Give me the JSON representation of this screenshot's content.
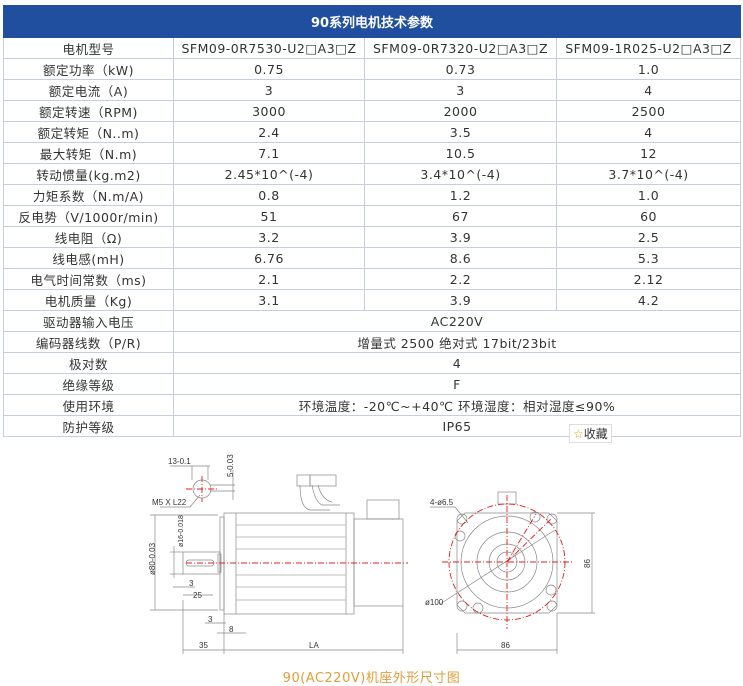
{
  "title": "90系列电机技术参数",
  "models": [
    "SFM09-0R7530-U2□A3□Z",
    "SFM09-0R7320-U2□A3□Z",
    "SFM09-1R025-U2□A3□Z"
  ],
  "model_label": "电机型号",
  "rows": [
    {
      "label": "额定功率（kW)",
      "values": [
        "0.75",
        "0.73",
        "1.0"
      ]
    },
    {
      "label": "额定电流（A)",
      "values": [
        "3",
        "3",
        "4"
      ]
    },
    {
      "label": "额定转速（RPM)",
      "values": [
        "3000",
        "2000",
        "2500"
      ]
    },
    {
      "label": "额定转矩（N..m)",
      "values": [
        "2.4",
        "3.5",
        "4"
      ]
    },
    {
      "label": "最大转矩（N.m)",
      "values": [
        "7.1",
        "10.5",
        "12"
      ]
    },
    {
      "label": "转动惯量(kg.m2)",
      "values": [
        "2.45*10^(-4)",
        "3.4*10^(-4)",
        "3.7*10^(-4)"
      ]
    },
    {
      "label": "力矩系数（N.m/A)",
      "values": [
        "0.8",
        "1.2",
        "1.0"
      ]
    },
    {
      "label": "反电势（V/1000r/min)",
      "values": [
        "51",
        "67",
        "60"
      ]
    },
    {
      "label": "线电阻（Ω)",
      "values": [
        "3.2",
        "3.9",
        "2.5"
      ]
    },
    {
      "label": "线电感(mH)",
      "values": [
        "6.76",
        "8.6",
        "5.3"
      ]
    },
    {
      "label": "电气时间常数（ms)",
      "values": [
        "2.1",
        "2.2",
        "2.12"
      ]
    },
    {
      "label": "电机质量（Kg)",
      "values": [
        "3.1",
        "3.9",
        "4.2"
      ]
    }
  ],
  "common_rows": [
    {
      "label": "驱动器输入电压",
      "value": "AC220V"
    },
    {
      "label": "编码器线数（P/R)",
      "value": "增量式 2500 绝对式 17bit/23bit"
    },
    {
      "label": "极对数",
      "value": "4"
    },
    {
      "label": "绝缘等级",
      "value": "F"
    },
    {
      "label": "使用环境",
      "value": "环境温度：-20℃~+40℃ 环境湿度：相对湿度≤90%"
    },
    {
      "label": "防护等级",
      "value": "IP65"
    }
  ],
  "favorite": {
    "icon": "star-icon",
    "label": "收藏"
  },
  "drawing": {
    "labels": {
      "key_width": "13-0.1",
      "key_depth": "5-0.03",
      "thread": "M5 X L22",
      "shaft_dia": "ø16-0.018",
      "spigot": "ø80-0.03",
      "d3a": "3",
      "d25": "25",
      "d3b": "3",
      "d8": "8",
      "d35": "35",
      "la": "LA",
      "holes": "4-ø6.5",
      "pcd": "ø100",
      "w86": "86",
      "h86": "86"
    },
    "caption": "90(AC220V)机座外形尺寸图"
  },
  "colors": {
    "header_bg": "#1f4f9e",
    "caption": "#e39c3a",
    "centerline": "#e02020"
  }
}
